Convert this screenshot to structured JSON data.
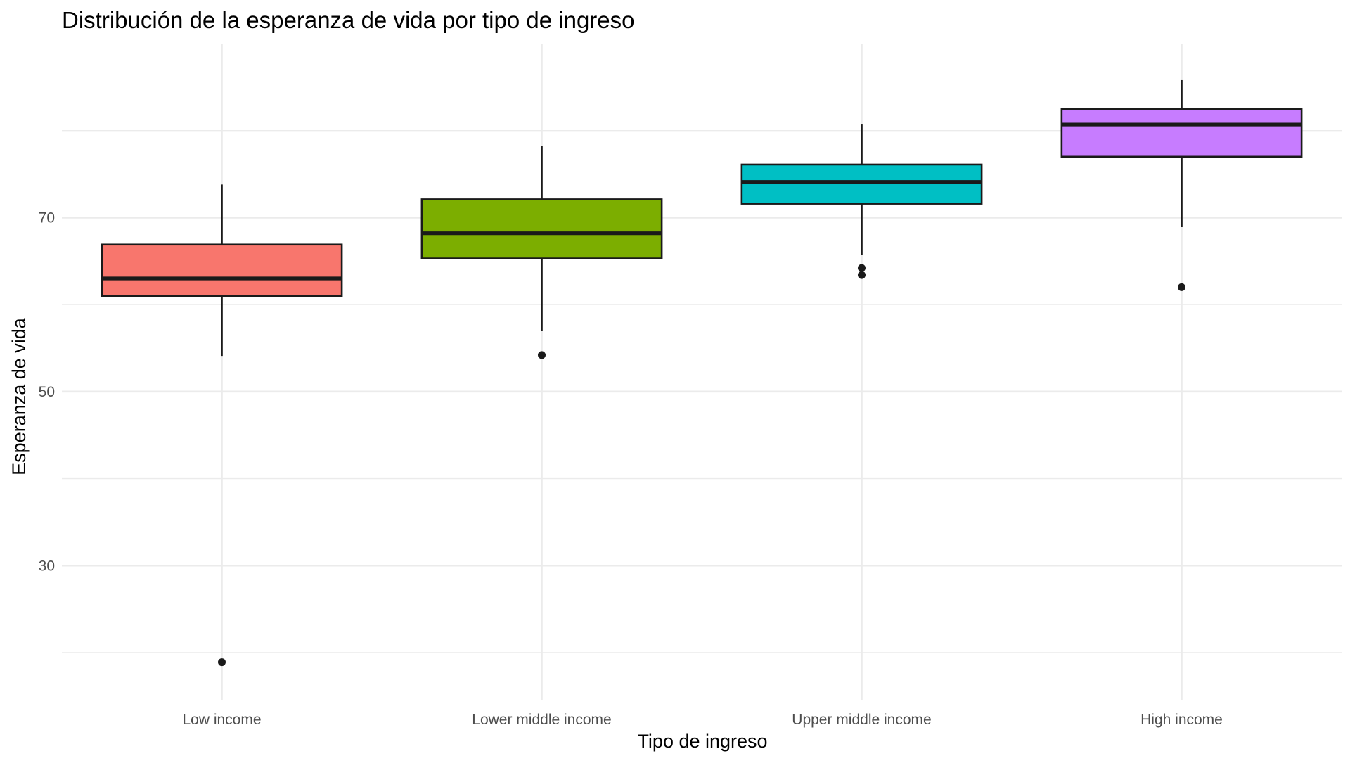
{
  "chart_data": {
    "type": "boxplot",
    "title": "Distribución de la esperanza de vida por tipo de ingreso",
    "xlabel": "Tipo de ingreso",
    "ylabel": "Esperanza de vida",
    "categories": [
      "Low income",
      "Lower middle income",
      "Upper middle income",
      "High income"
    ],
    "colors": [
      "#F8766D",
      "#7CAE00",
      "#00BFC4",
      "#C77CFF"
    ],
    "ylim": [
      14.5,
      90
    ],
    "y_ticks": [
      30,
      50,
      70
    ],
    "y_tick_labels": [
      "30",
      "50",
      "70"
    ],
    "y_minor_gridlines": [
      20,
      40,
      60,
      80
    ],
    "grid": true,
    "legend": "none",
    "boxes": [
      {
        "category": "Low income",
        "whisker_low": 54.1,
        "q1": 61.0,
        "median": 63.0,
        "q3": 66.9,
        "whisker_high": 73.8,
        "outliers": [
          18.9
        ]
      },
      {
        "category": "Lower middle income",
        "whisker_low": 57.0,
        "q1": 65.3,
        "median": 68.2,
        "q3": 72.1,
        "whisker_high": 78.2,
        "outliers": [
          54.2
        ]
      },
      {
        "category": "Upper middle income",
        "whisker_low": 65.7,
        "q1": 71.6,
        "median": 74.1,
        "q3": 76.1,
        "whisker_high": 80.7,
        "outliers": [
          64.2,
          63.4
        ]
      },
      {
        "category": "High income",
        "whisker_low": 68.9,
        "q1": 77.0,
        "median": 80.7,
        "q3": 82.5,
        "whisker_high": 85.8,
        "outliers": [
          62.0
        ]
      }
    ]
  }
}
